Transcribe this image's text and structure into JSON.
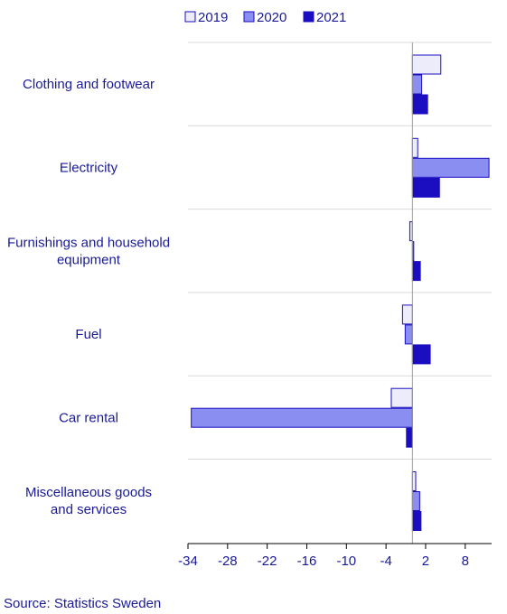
{
  "chart_data": {
    "type": "bar",
    "orientation": "horizontal",
    "categories": [
      "Clothing and footwear",
      "Electricity",
      "Furnishings and household equipment",
      "Fuel",
      "Car rental",
      "Miscellaneous goods and services"
    ],
    "category_lines": [
      [
        "Clothing and footwear"
      ],
      [
        "Electricity"
      ],
      [
        "Furnishings and household",
        "equipment"
      ],
      [
        "Fuel"
      ],
      [
        "Car rental"
      ],
      [
        "Miscellaneous goods",
        "and services"
      ]
    ],
    "series": [
      {
        "name": "2019",
        "color": "#ececfb",
        "values": [
          4.3,
          0.8,
          -0.4,
          -1.5,
          -3.2,
          0.5
        ]
      },
      {
        "name": "2020",
        "color": "#8a8ef0",
        "values": [
          1.4,
          11.6,
          0.2,
          -1.1,
          -33.5,
          1.1
        ]
      },
      {
        "name": "2021",
        "color": "#1a0ec0",
        "values": [
          2.3,
          4.1,
          1.2,
          2.7,
          -0.9,
          1.3
        ]
      }
    ],
    "xlim": [
      -34,
      12
    ],
    "xticks": [
      -34,
      -28,
      -22,
      -16,
      -10,
      -4,
      2,
      8
    ],
    "legend_position": "top",
    "grid": "horizontal separators between categories",
    "source": "Source: Statistics Sweden"
  }
}
